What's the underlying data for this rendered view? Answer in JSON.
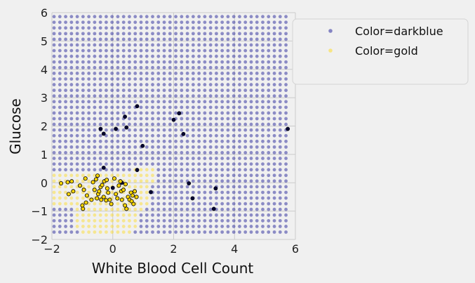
{
  "chart_data": {
    "type": "scatter",
    "xlabel": "White Blood Cell Count",
    "ylabel": "Glucose",
    "xlim": [
      -2,
      6
    ],
    "ylim": [
      -2,
      6
    ],
    "xticks": [
      -2,
      0,
      2,
      4,
      6
    ],
    "yticks": [
      -2,
      -1,
      0,
      1,
      2,
      3,
      4,
      5,
      6
    ],
    "grid": true,
    "legend_location": "outside-top-right",
    "background": {
      "grid_x_start": -1.93,
      "grid_x_step": 0.1905,
      "grid_x_count": 41,
      "grid_y_start": -1.74,
      "grid_y_step": 0.2,
      "grid_y_count": 39,
      "gold_region": [
        {
          "y_min": -1.8,
          "y_max": -1.65,
          "x_min": -1.0,
          "x_max": 0.55
        },
        {
          "y_min": -1.65,
          "y_max": -0.95,
          "x_min": -1.2,
          "x_max": 0.75
        },
        {
          "y_min": -0.95,
          "y_max": -0.75,
          "x_min": -1.2,
          "x_max": 0.95
        },
        {
          "y_min": -0.75,
          "y_max": 0.0,
          "x_min": -2.0,
          "x_max": 1.15
        },
        {
          "y_min": 0.0,
          "y_max": 0.35,
          "x_min": -2.0,
          "x_max": 1.35
        },
        {
          "y_min": 0.35,
          "y_max": 0.62,
          "x_min": 0.7,
          "x_max": 1.35
        }
      ]
    },
    "series": [
      {
        "name": "Color=darkblue",
        "role": "grid",
        "color": "#00008b",
        "alpha": 0.42
      },
      {
        "name": "Color=gold",
        "role": "grid",
        "color": "#ffd700",
        "alpha": 0.4
      },
      {
        "name": "darkblue points",
        "role": "data",
        "color": "#000033",
        "points": [
          [
            -0.4,
            1.9
          ],
          [
            -0.3,
            1.73
          ],
          [
            0.1,
            1.9
          ],
          [
            0.4,
            2.33
          ],
          [
            0.45,
            1.95
          ],
          [
            0.8,
            2.7
          ],
          [
            0.98,
            1.3
          ],
          [
            2.0,
            2.22
          ],
          [
            2.18,
            2.45
          ],
          [
            2.32,
            1.72
          ],
          [
            5.75,
            1.9
          ],
          [
            -0.3,
            0.53
          ],
          [
            0.8,
            0.45
          ],
          [
            1.25,
            -0.33
          ],
          [
            2.5,
            -0.02
          ],
          [
            2.62,
            -0.55
          ],
          [
            3.38,
            -0.2
          ],
          [
            3.32,
            -0.92
          ],
          [
            0.0,
            -0.18
          ],
          [
            0.3,
            0.0
          ]
        ]
      },
      {
        "name": "gold points",
        "role": "data",
        "color": "#ffd700",
        "edgecolor": "#111111",
        "points": [
          [
            -1.7,
            -0.02
          ],
          [
            -1.48,
            0.02
          ],
          [
            -1.35,
            0.05
          ],
          [
            -1.45,
            -0.4
          ],
          [
            -1.3,
            -0.3
          ],
          [
            -1.08,
            -0.1
          ],
          [
            -0.95,
            -0.25
          ],
          [
            -0.9,
            0.15
          ],
          [
            -0.85,
            -0.45
          ],
          [
            -1.0,
            -0.8
          ],
          [
            -0.98,
            -0.92
          ],
          [
            -0.88,
            -0.7
          ],
          [
            -0.7,
            -0.6
          ],
          [
            -0.65,
            0.02
          ],
          [
            -0.6,
            -0.25
          ],
          [
            -0.55,
            0.12
          ],
          [
            -0.52,
            -0.55
          ],
          [
            -0.5,
            0.25
          ],
          [
            -0.48,
            -0.4
          ],
          [
            -0.45,
            -0.3
          ],
          [
            -0.4,
            -0.15
          ],
          [
            -0.38,
            -0.6
          ],
          [
            -0.35,
            -0.08
          ],
          [
            -0.3,
            -0.5
          ],
          [
            -0.28,
            0.05
          ],
          [
            -0.22,
            -0.62
          ],
          [
            -0.2,
            0.1
          ],
          [
            -0.18,
            -0.2
          ],
          [
            -0.15,
            -0.35
          ],
          [
            -0.1,
            -0.6
          ],
          [
            -0.05,
            -0.75
          ],
          [
            0.05,
            0.15
          ],
          [
            0.1,
            -0.4
          ],
          [
            0.15,
            -0.55
          ],
          [
            0.2,
            -0.1
          ],
          [
            0.25,
            0.05
          ],
          [
            0.28,
            -0.3
          ],
          [
            0.3,
            -0.6
          ],
          [
            0.35,
            -0.25
          ],
          [
            0.4,
            -0.8
          ],
          [
            0.45,
            -0.92
          ],
          [
            0.5,
            -0.5
          ],
          [
            0.55,
            -0.6
          ],
          [
            0.6,
            -0.35
          ],
          [
            0.62,
            -0.65
          ],
          [
            0.65,
            -0.45
          ],
          [
            0.68,
            -0.75
          ],
          [
            0.72,
            -0.3
          ],
          [
            0.78,
            -0.5
          ],
          [
            0.42,
            -0.05
          ]
        ]
      }
    ],
    "legend": [
      {
        "label": "Color=darkblue",
        "color": "#00008b",
        "alpha": 0.45
      },
      {
        "label": "Color=gold",
        "color": "#ffd700",
        "alpha": 0.45
      }
    ]
  }
}
